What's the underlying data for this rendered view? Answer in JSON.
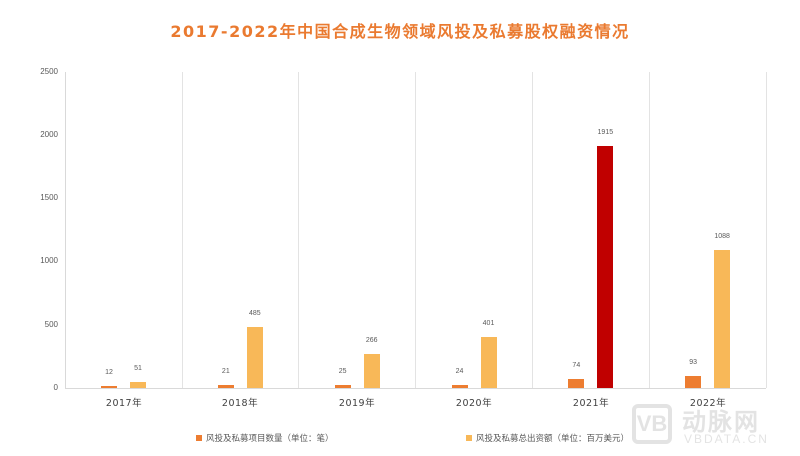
{
  "chart_data": {
    "type": "bar",
    "title": "2017-2022年中国合成生物领域风投及私募股权融资情况",
    "categories": [
      "2017年",
      "2018年",
      "2019年",
      "2020年",
      "2021年",
      "2022年"
    ],
    "series": [
      {
        "name": "风投及私募项目数量（单位：笔）",
        "color": "#ed7d31",
        "values": [
          12,
          21,
          25,
          24,
          74,
          93
        ]
      },
      {
        "name": "风投及私募总出资额（单位：百万美元）",
        "color": "#f8b858",
        "values": [
          51,
          485,
          266,
          401,
          1915,
          1088
        ],
        "highlight_index": 4,
        "highlight_color": "#c00000"
      }
    ],
    "xlabel": "",
    "ylabel": "",
    "ylim": [
      0,
      2500
    ],
    "yticks": [
      0,
      500,
      1000,
      1500,
      2000,
      2500
    ],
    "grid": "vertical category separators",
    "legend_position": "bottom"
  },
  "title": "2017-2022年中国合成生物领域风投及私募股权融资情况",
  "yticks": [
    "2500",
    "2000",
    "1500",
    "1000",
    "500",
    "0"
  ],
  "xticks": [
    "2017年",
    "2018年",
    "2019年",
    "2020年",
    "2021年",
    "2022年"
  ],
  "count_labels": [
    "12",
    "21",
    "25",
    "24",
    "74",
    "93"
  ],
  "fund_labels": [
    "51",
    "485",
    "266",
    "401",
    "1915",
    "1088"
  ],
  "legend": {
    "count": "风投及私募项目数量（单位：笔）",
    "fund": "风投及私募总出资额（单位：百万美元）"
  },
  "watermark": {
    "logo": "VB",
    "cn": "动脉网",
    "en": "VBDATA.CN"
  }
}
